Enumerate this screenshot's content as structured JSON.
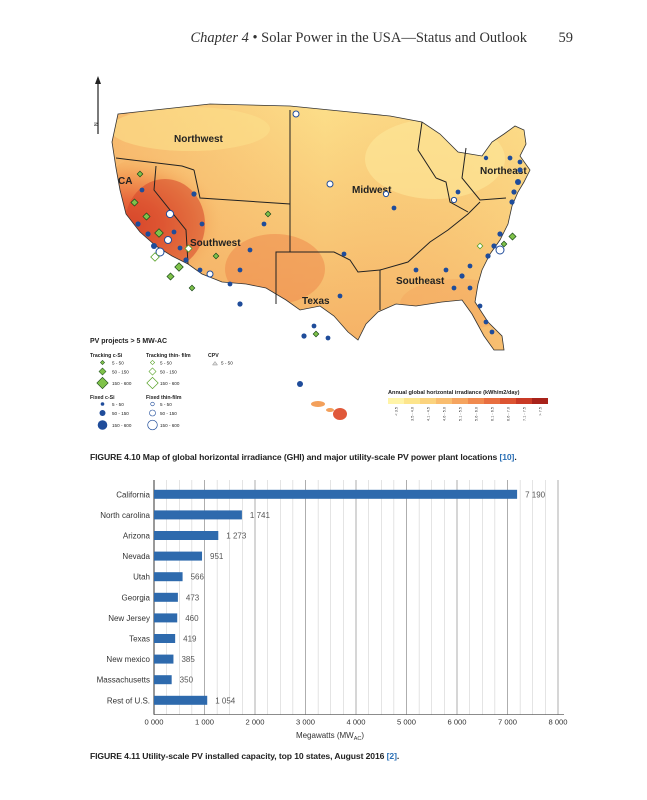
{
  "header": {
    "chapter": "Chapter 4",
    "bullet": " • ",
    "section": "Solar Power in the USA—Status and Outlook",
    "page_number": "59"
  },
  "map": {
    "compass_label": "N",
    "regions": [
      "Northwest",
      "CA",
      "Midwest",
      "Northeast",
      "Southwest",
      "Southeast",
      "Texas"
    ],
    "legend_title": "PV projects > 5 MW-AC",
    "legend_groups": [
      {
        "title": "Tracking c-Si",
        "items": [
          "5 - 50",
          "50 - 150",
          "150 - 600"
        ]
      },
      {
        "title": "Tracking  thin- film",
        "items": [
          "5 - 50",
          "50 - 150",
          "150 - 600"
        ]
      },
      {
        "title": "CPV",
        "items": [
          "5 - 50"
        ]
      },
      {
        "title": "Fixed c-Si",
        "items": [
          "5 - 50",
          "50 - 150",
          "150 - 600"
        ]
      },
      {
        "title": "Fixed  thin-film",
        "items": [
          "5 - 50",
          "50 - 150",
          "150 - 600"
        ]
      }
    ],
    "colorbar_title": "Annual  global  horizontal irradiance (kWh/m2/day)",
    "colorbar_ticks": [
      "< 3.5",
      "3.5 - 4.0",
      "4.1 - 4.5",
      "4.6 - 5.0",
      "5.1 - 5.5",
      "5.6 - 6.0",
      "6.1 - 6.5",
      "6.6 - 7.0",
      "7.1 - 7.5",
      "> 7.5"
    ],
    "colorbar_colors": [
      "#fff4a8",
      "#fde58c",
      "#fbd37e",
      "#f9bd6f",
      "#f5a45f",
      "#f08a4f",
      "#e86f40",
      "#dc5432",
      "#c93a26",
      "#a8221a"
    ]
  },
  "figure_4_10_caption": {
    "text": "FIGURE 4.10  Map of global horizontal irradiance (GHI) and major utility-scale PV power plant locations ",
    "ref": "[10]",
    "end": "."
  },
  "chart_data": {
    "type": "bar",
    "orientation": "horizontal",
    "categories": [
      "California",
      "North carolina",
      "Arizona",
      "Nevada",
      "Utah",
      "Georgia",
      "New Jersey",
      "Texas",
      "New mexico",
      "Massachusetts",
      "Rest of U.S."
    ],
    "values": [
      7190,
      1741,
      1273,
      951,
      566,
      473,
      460,
      419,
      385,
      350,
      1054
    ],
    "value_labels": [
      "7 190",
      "1 741",
      "1 273",
      "951",
      "566",
      "473",
      "460",
      "419",
      "385",
      "350",
      "1 054"
    ],
    "xlabel": "Megawatts (MW",
    "xlabel_sub": "AC",
    "xlabel_end": ")",
    "xlim": [
      0,
      8000
    ],
    "xticks": [
      0,
      1000,
      2000,
      3000,
      4000,
      5000,
      6000,
      7000,
      8000
    ],
    "xtick_labels": [
      "0 000",
      "1 000",
      "2 000",
      "3 000",
      "4 000",
      "5 000",
      "6 000",
      "7 000",
      "8 000"
    ],
    "bar_color": "#2e6aad",
    "grid": "vertical"
  },
  "figure_4_11_caption": {
    "text": "FIGURE 4.11  Utility-scale PV installed capacity, top 10 states, August 2016 ",
    "ref": "[2]",
    "end": "."
  }
}
